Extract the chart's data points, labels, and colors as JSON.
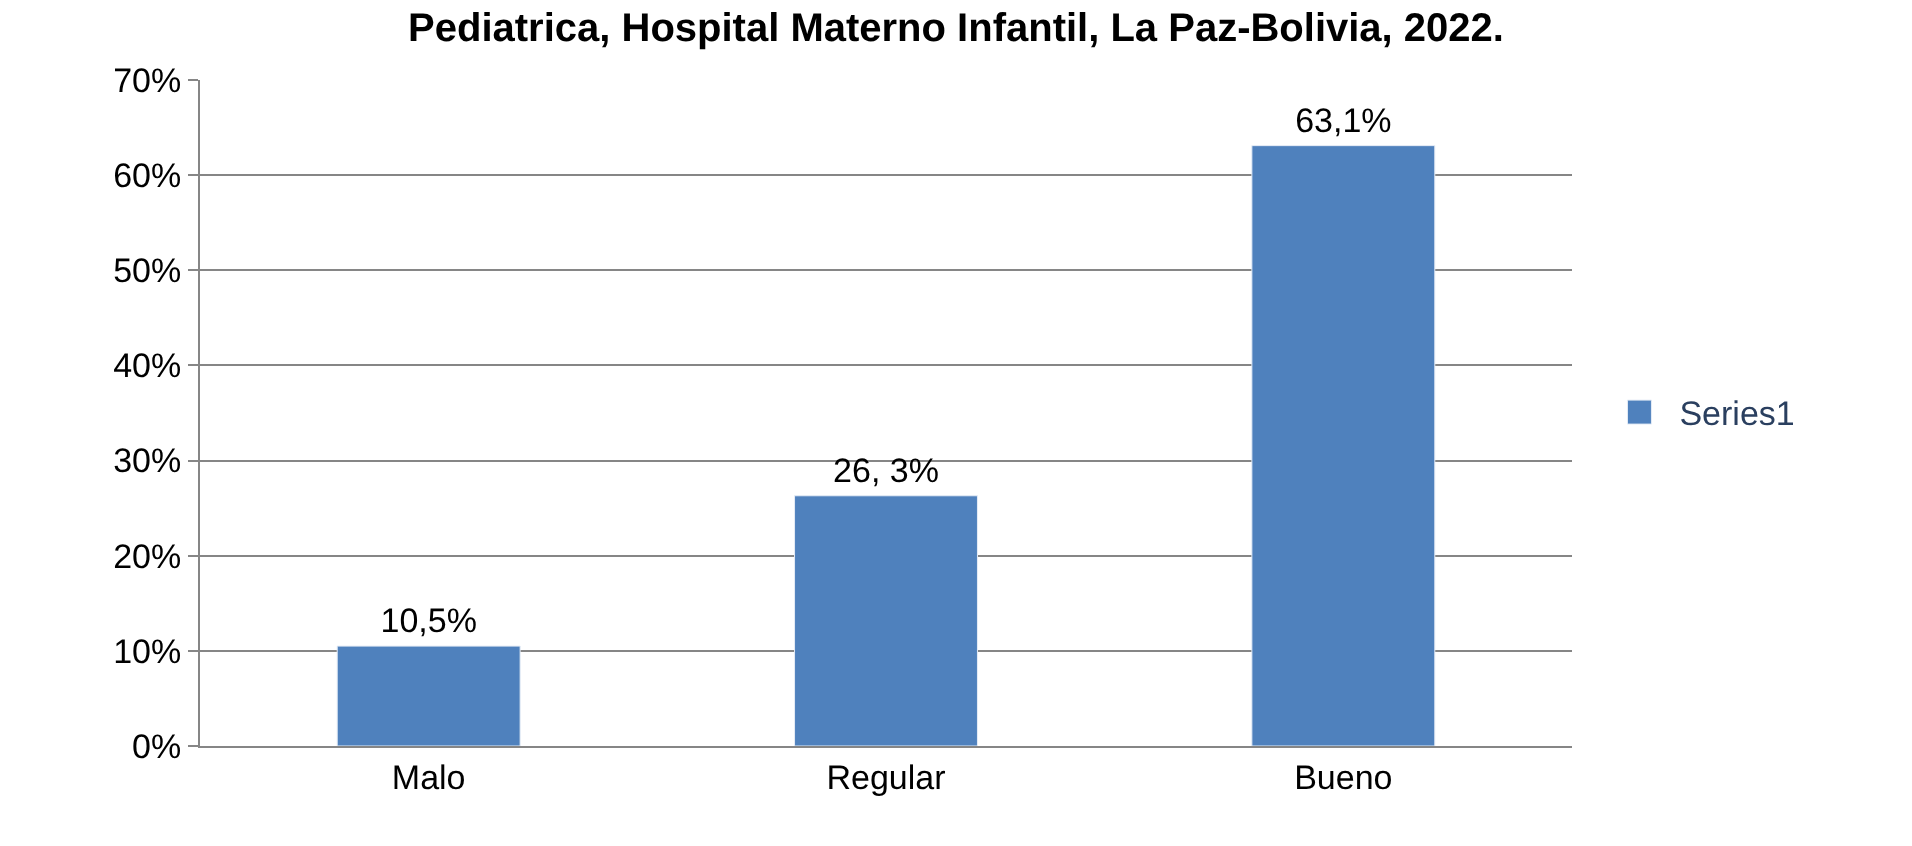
{
  "chart_data": {
    "type": "bar",
    "title": "Pediatrica, Hospital Materno Infantil, La Paz-Bolivia, 2022.",
    "categories": [
      "Malo",
      "Regular",
      "Bueno"
    ],
    "series": [
      {
        "name": "Series1",
        "color": "#4f81bd",
        "values": [
          10.5,
          26.3,
          63.1
        ],
        "value_labels": [
          "10,5%",
          "26, 3%",
          "63,1%"
        ]
      }
    ],
    "ylim": [
      0,
      70
    ],
    "yticks": [
      {
        "value": 0,
        "label": "0%"
      },
      {
        "value": 10,
        "label": "10%"
      },
      {
        "value": 20,
        "label": "20%"
      },
      {
        "value": 30,
        "label": "30%"
      },
      {
        "value": 40,
        "label": "40%"
      },
      {
        "value": 50,
        "label": "50%"
      },
      {
        "value": 60,
        "label": "60%"
      },
      {
        "value": 70,
        "label": "70%"
      }
    ],
    "grid": "y",
    "legend": "right"
  }
}
